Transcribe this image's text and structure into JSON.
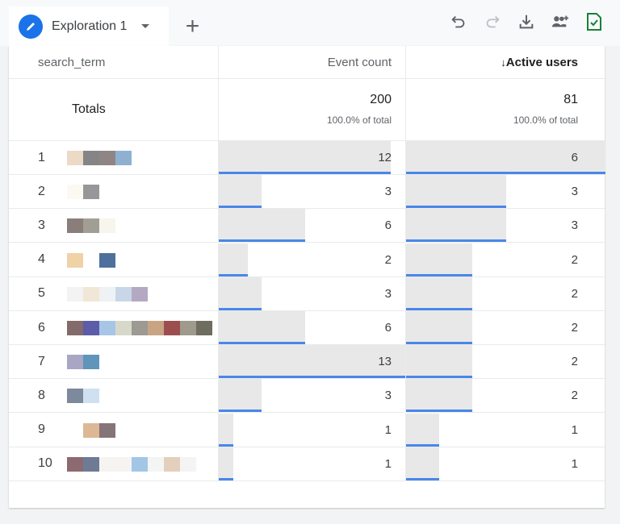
{
  "tab": {
    "title": "Exploration 1",
    "add_label": "+"
  },
  "toolbar": {
    "icons": [
      "undo-icon",
      "redo-icon",
      "download-icon",
      "share-icon",
      "save-check-icon"
    ],
    "save_color": "#188038"
  },
  "table": {
    "headers": {
      "dimension": "search_term",
      "metric1": "Event count",
      "metric2": "Active users",
      "sort_indicator": "↓"
    },
    "totals": {
      "label": "Totals",
      "metric1": "200",
      "metric1_pct": "100.0% of total",
      "metric2": "81",
      "metric2_pct": "100.0% of total"
    },
    "rows": [
      {
        "index": "1",
        "term_colors": [
          "#ecd9c6",
          "#858585",
          "#8f8585",
          "#8fb1d1"
        ],
        "event_count": 12,
        "active_users": 6
      },
      {
        "index": "2",
        "term_colors": [
          "#fafaf2",
          "#979799"
        ],
        "event_count": 3,
        "active_users": 3
      },
      {
        "index": "3",
        "term_colors": [
          "#8a7e7a",
          "#a19f93",
          "#f7f5ee"
        ],
        "event_count": 6,
        "active_users": 3
      },
      {
        "index": "4",
        "term_colors": [
          "#efd2a6",
          "#ffffff",
          "#4d709c"
        ],
        "event_count": 2,
        "active_users": 2
      },
      {
        "index": "5",
        "term_colors": [
          "#f3f3f3",
          "#f1e7d6",
          "#eef2f5",
          "#c8d7e8",
          "#b4a9c2"
        ],
        "event_count": 3,
        "active_users": 2
      },
      {
        "index": "6",
        "term_colors": [
          "#836b6b",
          "#5c5ca8",
          "#a7c6e6",
          "#d8d8ca",
          "#9c9a93",
          "#c8a484",
          "#9c4e4e",
          "#9f9a8c",
          "#6f6c60"
        ],
        "event_count": 6,
        "active_users": 2
      },
      {
        "index": "7",
        "term_colors": [
          "#a8a6c2",
          "#5f94bb"
        ],
        "event_count": 13,
        "active_users": 2
      },
      {
        "index": "8",
        "term_colors": [
          "#7c8a9c",
          "#cfe0f0"
        ],
        "event_count": 3,
        "active_users": 2
      },
      {
        "index": "9",
        "term_colors": [
          "#ffffff",
          "#dcb896",
          "#857478"
        ],
        "event_count": 1,
        "active_users": 1
      },
      {
        "index": "10",
        "term_colors": [
          "#8d6a70",
          "#6f7b94",
          "#f6f4f0",
          "#f5f4f2",
          "#a2c6e6",
          "#f3f5f5",
          "#e4cfbd",
          "#f4f4f4"
        ],
        "event_count": 1,
        "active_users": 1
      }
    ],
    "bar_color": "#4a86e8"
  }
}
